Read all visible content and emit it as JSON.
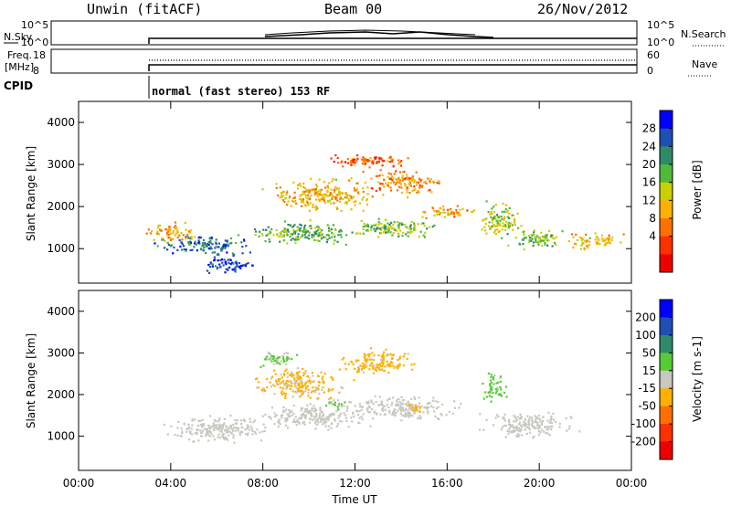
{
  "header": {
    "station": "Unwin (fitACF)",
    "beam": "Beam 00",
    "date": "26/Nov/2012"
  },
  "noise_panel": {
    "left_label": "N.Sky",
    "left_ticks": [
      "10^5",
      "10^0"
    ],
    "right_label": "N.Search",
    "right_ticks": [
      "10^5",
      "10^0"
    ]
  },
  "freq_panel": {
    "left_label_1": "Freq.",
    "left_label_2": "[MHz]",
    "left_ticks": [
      "18",
      "8"
    ],
    "right_label": "Nave",
    "right_ticks": [
      "60",
      "0"
    ]
  },
  "cpid": {
    "label": "CPID",
    "mode_text": "normal (fast stereo) 153 RF"
  },
  "colors": {
    "power_scale": [
      "#0000ff",
      "#1e4fb4",
      "#2f8a6a",
      "#4fba3a",
      "#c8d000",
      "#ffb000",
      "#ff7000",
      "#ff3000",
      "#ee0000"
    ],
    "velocity_scale": [
      "#0000ff",
      "#1e4fb4",
      "#2f8a6a",
      "#55cc33",
      "#c8c8c0",
      "#ffb000",
      "#ff7000",
      "#ff3000",
      "#ee0000"
    ],
    "ground_scatter": "#c8c8c0"
  },
  "chart_data": [
    {
      "type": "heatmap",
      "name": "power",
      "ylabel": "Slant Range [km]",
      "xlabel": "Time UT",
      "x_ticks": [
        "00:00",
        "04:00",
        "08:00",
        "12:00",
        "16:00",
        "20:00",
        "00:00"
      ],
      "y_ticks": [
        "1000",
        "2000",
        "3000",
        "4000"
      ],
      "ylim": [
        180,
        4500
      ],
      "xlim_hours": [
        0,
        24
      ],
      "colorbar_label": "Power [dB]",
      "colorbar_ticks": [
        "28",
        "24",
        "20",
        "16",
        "12",
        "8",
        "4"
      ],
      "colorbar_range": [
        0,
        32
      ],
      "blobs": [
        {
          "t": 5.5,
          "r": 1100,
          "dt": 2.5,
          "dr": 300,
          "v": 25
        },
        {
          "t": 6.5,
          "r": 650,
          "dt": 1.6,
          "dr": 250,
          "v": 27
        },
        {
          "t": 9.5,
          "r": 1400,
          "dt": 3.0,
          "dr": 350,
          "v": 20
        },
        {
          "t": 13.5,
          "r": 1500,
          "dt": 2.5,
          "dr": 300,
          "v": 19
        },
        {
          "t": 10.5,
          "r": 2300,
          "dt": 3.0,
          "dr": 450,
          "v": 13
        },
        {
          "t": 14.0,
          "r": 2600,
          "dt": 2.0,
          "dr": 400,
          "v": 11
        },
        {
          "t": 16.0,
          "r": 1900,
          "dt": 1.5,
          "dr": 200,
          "v": 12
        },
        {
          "t": 18.3,
          "r": 1700,
          "dt": 1.2,
          "dr": 500,
          "v": 17
        },
        {
          "t": 19.8,
          "r": 1250,
          "dt": 1.6,
          "dr": 300,
          "v": 19
        },
        {
          "t": 22.3,
          "r": 1200,
          "dt": 1.6,
          "dr": 250,
          "v": 13
        },
        {
          "t": 4.0,
          "r": 1400,
          "dt": 1.3,
          "dr": 300,
          "v": 12
        },
        {
          "t": 12.5,
          "r": 3100,
          "dt": 2.5,
          "dr": 200,
          "v": 8
        }
      ]
    },
    {
      "type": "heatmap",
      "name": "velocity",
      "ylabel": "Slant Range [km]",
      "xlabel": "Time UT",
      "x_ticks": [
        "00:00",
        "04:00",
        "08:00",
        "12:00",
        "16:00",
        "20:00",
        "00:00"
      ],
      "y_ticks": [
        "1000",
        "2000",
        "3000",
        "4000"
      ],
      "ylim": [
        180,
        4500
      ],
      "xlim_hours": [
        0,
        24
      ],
      "colorbar_label": "Velocity [m s-1]",
      "colorbar_ticks": [
        "200",
        "100",
        "50",
        "15",
        "-15",
        "-50",
        "-100",
        "-200"
      ],
      "colorbar_range": [
        -250,
        250
      ],
      "blobs": [
        {
          "t": 6.0,
          "r": 1200,
          "dt": 3.0,
          "dr": 400,
          "v": 0
        },
        {
          "t": 10.0,
          "r": 1500,
          "dt": 3.0,
          "dr": 400,
          "v": 0
        },
        {
          "t": 14.0,
          "r": 1700,
          "dt": 3.0,
          "dr": 400,
          "v": 0
        },
        {
          "t": 19.5,
          "r": 1300,
          "dt": 2.5,
          "dr": 400,
          "v": 0
        },
        {
          "t": 9.5,
          "r": 2300,
          "dt": 2.5,
          "dr": 500,
          "v": -35
        },
        {
          "t": 13.0,
          "r": 2800,
          "dt": 2.0,
          "dr": 400,
          "v": -40
        },
        {
          "t": 8.5,
          "r": 2900,
          "dt": 1.0,
          "dr": 300,
          "v": 30
        },
        {
          "t": 11.0,
          "r": 1800,
          "dt": 0.6,
          "dr": 200,
          "v": 35
        },
        {
          "t": 18.0,
          "r": 2200,
          "dt": 0.6,
          "dr": 500,
          "v": 40
        },
        {
          "t": 14.5,
          "r": 1700,
          "dt": 0.5,
          "dr": 150,
          "v": -60
        }
      ]
    }
  ]
}
